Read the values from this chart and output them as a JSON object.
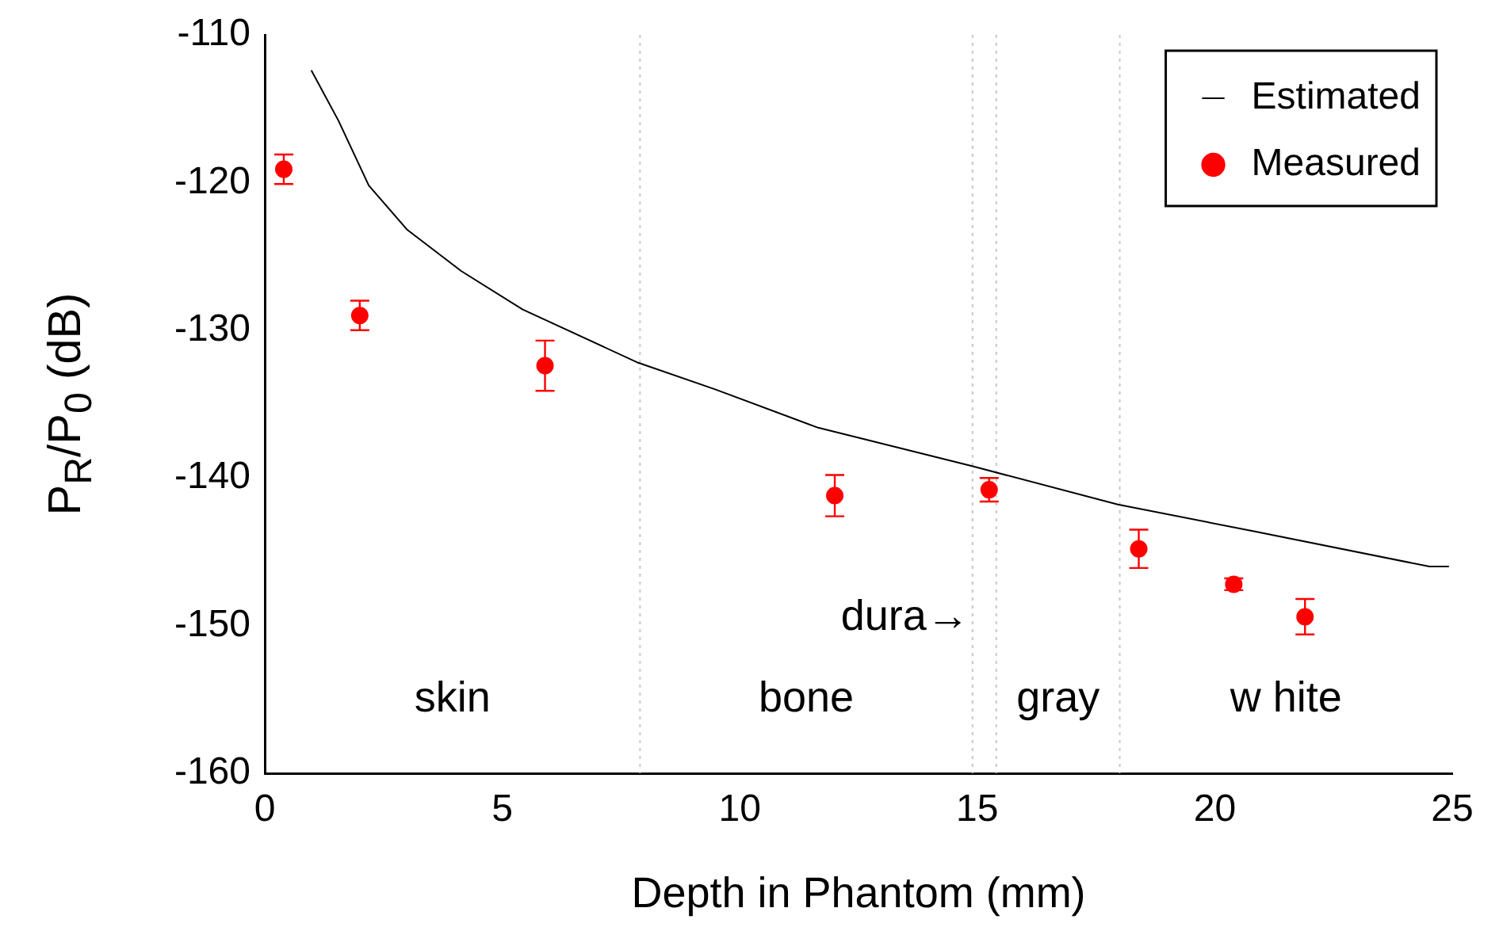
{
  "chart_data": {
    "type": "scatter",
    "xlabel": "Depth in Phantom (mm)",
    "ylabel": "P$_{R}$/P$_{0}$ (dB)",
    "xlim": [
      0,
      25
    ],
    "xticks": [
      0,
      5,
      10,
      15,
      20,
      25
    ],
    "ylim": [
      -160,
      -110
    ],
    "yticks": [
      -160,
      -150,
      -140,
      -130,
      -120,
      -110
    ],
    "grid": false,
    "legend": "top right",
    "marker": "circle",
    "series": [
      {
        "name": "Estimated",
        "type": "line",
        "color": "#000000",
        "marker": "none",
        "line_style": "solid",
        "x": [
          0.98,
          1.55,
          2.19,
          3.0,
          4.14,
          5.43,
          7.86,
          9.48,
          11.65,
          14.89,
          17.96,
          20.8,
          24.52,
          24.93
        ],
        "values": [
          -112.4,
          -115.8,
          -120.2,
          -123.2,
          -126.0,
          -128.6,
          -132.2,
          -134.0,
          -136.6,
          -139.2,
          -141.8,
          -143.6,
          -146.0,
          -146.0
        ]
      },
      {
        "name": "Measured",
        "type": "scatter",
        "color": "#ff0000",
        "x": [
          0.4,
          2.0,
          5.9,
          12.0,
          15.25,
          18.4,
          20.4,
          21.9
        ],
        "values": [
          -119.1,
          -129.0,
          -132.4,
          -141.2,
          -140.8,
          -144.8,
          -147.2,
          -149.4
        ],
        "errors": [
          1.0,
          1.0,
          1.7,
          1.4,
          0.8,
          1.3,
          0.4,
          1.2
        ]
      }
    ],
    "ref_lines": [
      {
        "axis": "x",
        "value": 7.9,
        "color": "#c8c8c8",
        "line_style": "dotted"
      },
      {
        "axis": "x",
        "value": 14.9,
        "color": "#c8c8c8",
        "line_style": "dotted",
        "label": "dura→"
      },
      {
        "axis": "x",
        "value": 15.4,
        "color": "#c8c8c8",
        "line_style": "dotted"
      },
      {
        "axis": "x",
        "value": 18.0,
        "color": "#c8c8c8",
        "line_style": "dotted"
      }
    ],
    "annotations": [
      "skin",
      "bone",
      "gray",
      "w hite"
    ]
  }
}
